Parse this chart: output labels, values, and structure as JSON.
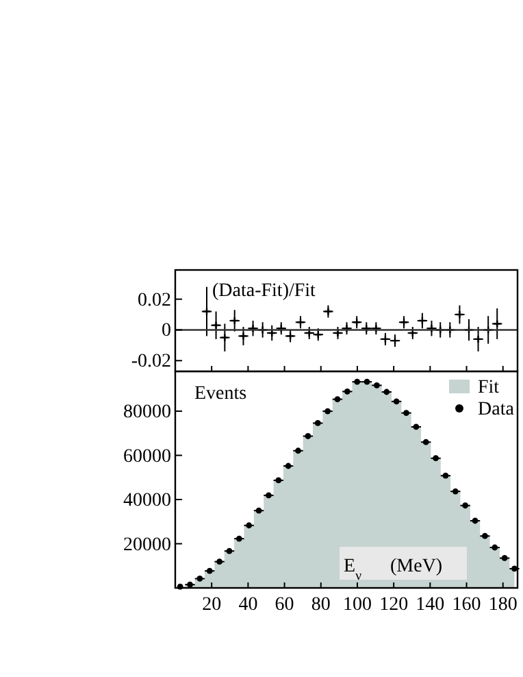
{
  "chart_data": [
    {
      "type": "scatter",
      "annotations": [
        "(Data-Fit)/Fit"
      ],
      "xlim": [
        0,
        188
      ],
      "ylim": [
        -0.027,
        0.039
      ],
      "yticks": [
        0.02,
        0,
        -0.02
      ],
      "xticks": [
        {
          "value": 20,
          "label": null
        },
        {
          "value": 40,
          "label": null
        },
        {
          "value": 60,
          "label": null
        },
        {
          "value": 80,
          "label": null
        },
        {
          "value": 100,
          "label": null
        },
        {
          "value": 120,
          "label": null
        },
        {
          "value": 140,
          "label": null
        },
        {
          "value": 160,
          "label": null
        },
        {
          "value": 180,
          "label": null
        }
      ],
      "tick_labels": "y",
      "marker": "cross",
      "ref_lines": [
        {
          "axis": "y",
          "value": 0
        }
      ],
      "series": [
        {
          "color": "#000000",
          "x": [
            17.3,
            22.4,
            27.2,
            32.6,
            37.4,
            42.7,
            48.0,
            53.1,
            58.2,
            63.2,
            68.8,
            73.6,
            78.5,
            84.0,
            89.3,
            94.2,
            99.7,
            105.0,
            110.3,
            115.4,
            120.7,
            125.6,
            130.4,
            135.7,
            140.8,
            145.6,
            150.9,
            156.2,
            161.3,
            166.4,
            171.9,
            176.8
          ],
          "values": [
            0.012,
            0.003,
            -0.005,
            0.006,
            -0.004,
            0.001,
            0,
            -0.002,
            0.001,
            -0.004,
            0.005,
            -0.002,
            -0.003,
            0.012,
            -0.002,
            0.001,
            0.005,
            0.001,
            0.001,
            -0.006,
            -0.007,
            0.005,
            -0.002,
            0.006,
            0.001,
            0,
            0,
            0.01,
            0,
            -0.006,
            0,
            0.004
          ],
          "errors": [
            0.016,
            0.009,
            0.009,
            0.007,
            0.006,
            0.005,
            0.005,
            0.005,
            0.004,
            0.004,
            0.004,
            0.004,
            0.004,
            0.004,
            0.004,
            0.004,
            0.004,
            0.004,
            0.004,
            0.004,
            0.004,
            0.004,
            0.004,
            0.005,
            0.005,
            0.005,
            0.005,
            0.006,
            0.007,
            0.008,
            0.009,
            0.01
          ],
          "xerrors": [
            2.7,
            2.7,
            2.7,
            2.7,
            2.7,
            2.7,
            2.7,
            2.7,
            2.7,
            2.7,
            2.7,
            2.7,
            2.7,
            2.7,
            2.7,
            2.7,
            2.7,
            2.7,
            2.7,
            2.7,
            2.7,
            2.7,
            2.7,
            2.7,
            2.7,
            2.7,
            2.7,
            2.7,
            2.7,
            2.7,
            2.7,
            2.7
          ]
        }
      ]
    },
    {
      "type": "scatter",
      "ylabel": "Events",
      "xlabel": "E$_{ν}$      (MeV)",
      "xlim": [
        0,
        188
      ],
      "ylim": [
        0,
        98000
      ],
      "xticks": [
        20,
        40,
        60,
        80,
        100,
        120,
        140,
        160,
        180
      ],
      "yticks": [
        20000,
        40000,
        60000,
        80000
      ],
      "legend": "top right",
      "x": [
        2.7,
        8.1,
        13.5,
        18.9,
        24.3,
        29.7,
        35.1,
        40.5,
        45.9,
        51.3,
        56.7,
        62.1,
        67.5,
        72.9,
        78.3,
        83.7,
        89.1,
        94.5,
        99.9,
        105.3,
        110.7,
        116.1,
        121.5,
        126.9,
        132.3,
        137.7,
        143.1,
        148.5,
        153.9,
        159.3,
        164.7,
        170.1,
        175.5,
        180.9,
        186.3
      ],
      "series": [
        {
          "name": "Fit",
          "type": "area",
          "color": "#c5d3d1",
          "values": [
            600,
            1500,
            4200,
            7700,
            11900,
            16700,
            22300,
            28300,
            35000,
            41900,
            48700,
            55200,
            62100,
            68700,
            74600,
            80000,
            85400,
            88900,
            93300,
            93300,
            91700,
            88700,
            84400,
            79200,
            72900,
            66000,
            58700,
            50800,
            43700,
            37300,
            30400,
            23500,
            18300,
            13500,
            8700
          ]
        },
        {
          "name": "Data",
          "marker": "circle",
          "color": "#000000",
          "values": [
            600,
            1500,
            4200,
            7700,
            11900,
            16700,
            22300,
            28300,
            35000,
            41900,
            48700,
            55200,
            62100,
            68700,
            74600,
            80000,
            85400,
            88900,
            93300,
            93300,
            91700,
            88700,
            84400,
            79200,
            72900,
            66000,
            58700,
            50800,
            43700,
            37300,
            30400,
            23500,
            18300,
            13500,
            8700
          ],
          "xerrors": [
            null,
            2.7,
            2.7,
            2.7,
            2.7,
            2.7,
            2.7,
            2.7,
            2.7,
            2.7,
            2.7,
            2.7,
            2.7,
            2.7,
            2.7,
            2.7,
            2.7,
            2.7,
            2.7,
            2.7,
            2.7,
            2.7,
            2.7,
            2.7,
            2.7,
            2.7,
            2.7,
            2.7,
            2.7,
            2.7,
            2.7,
            2.7,
            2.7,
            2.7,
            2.7
          ]
        }
      ]
    }
  ]
}
